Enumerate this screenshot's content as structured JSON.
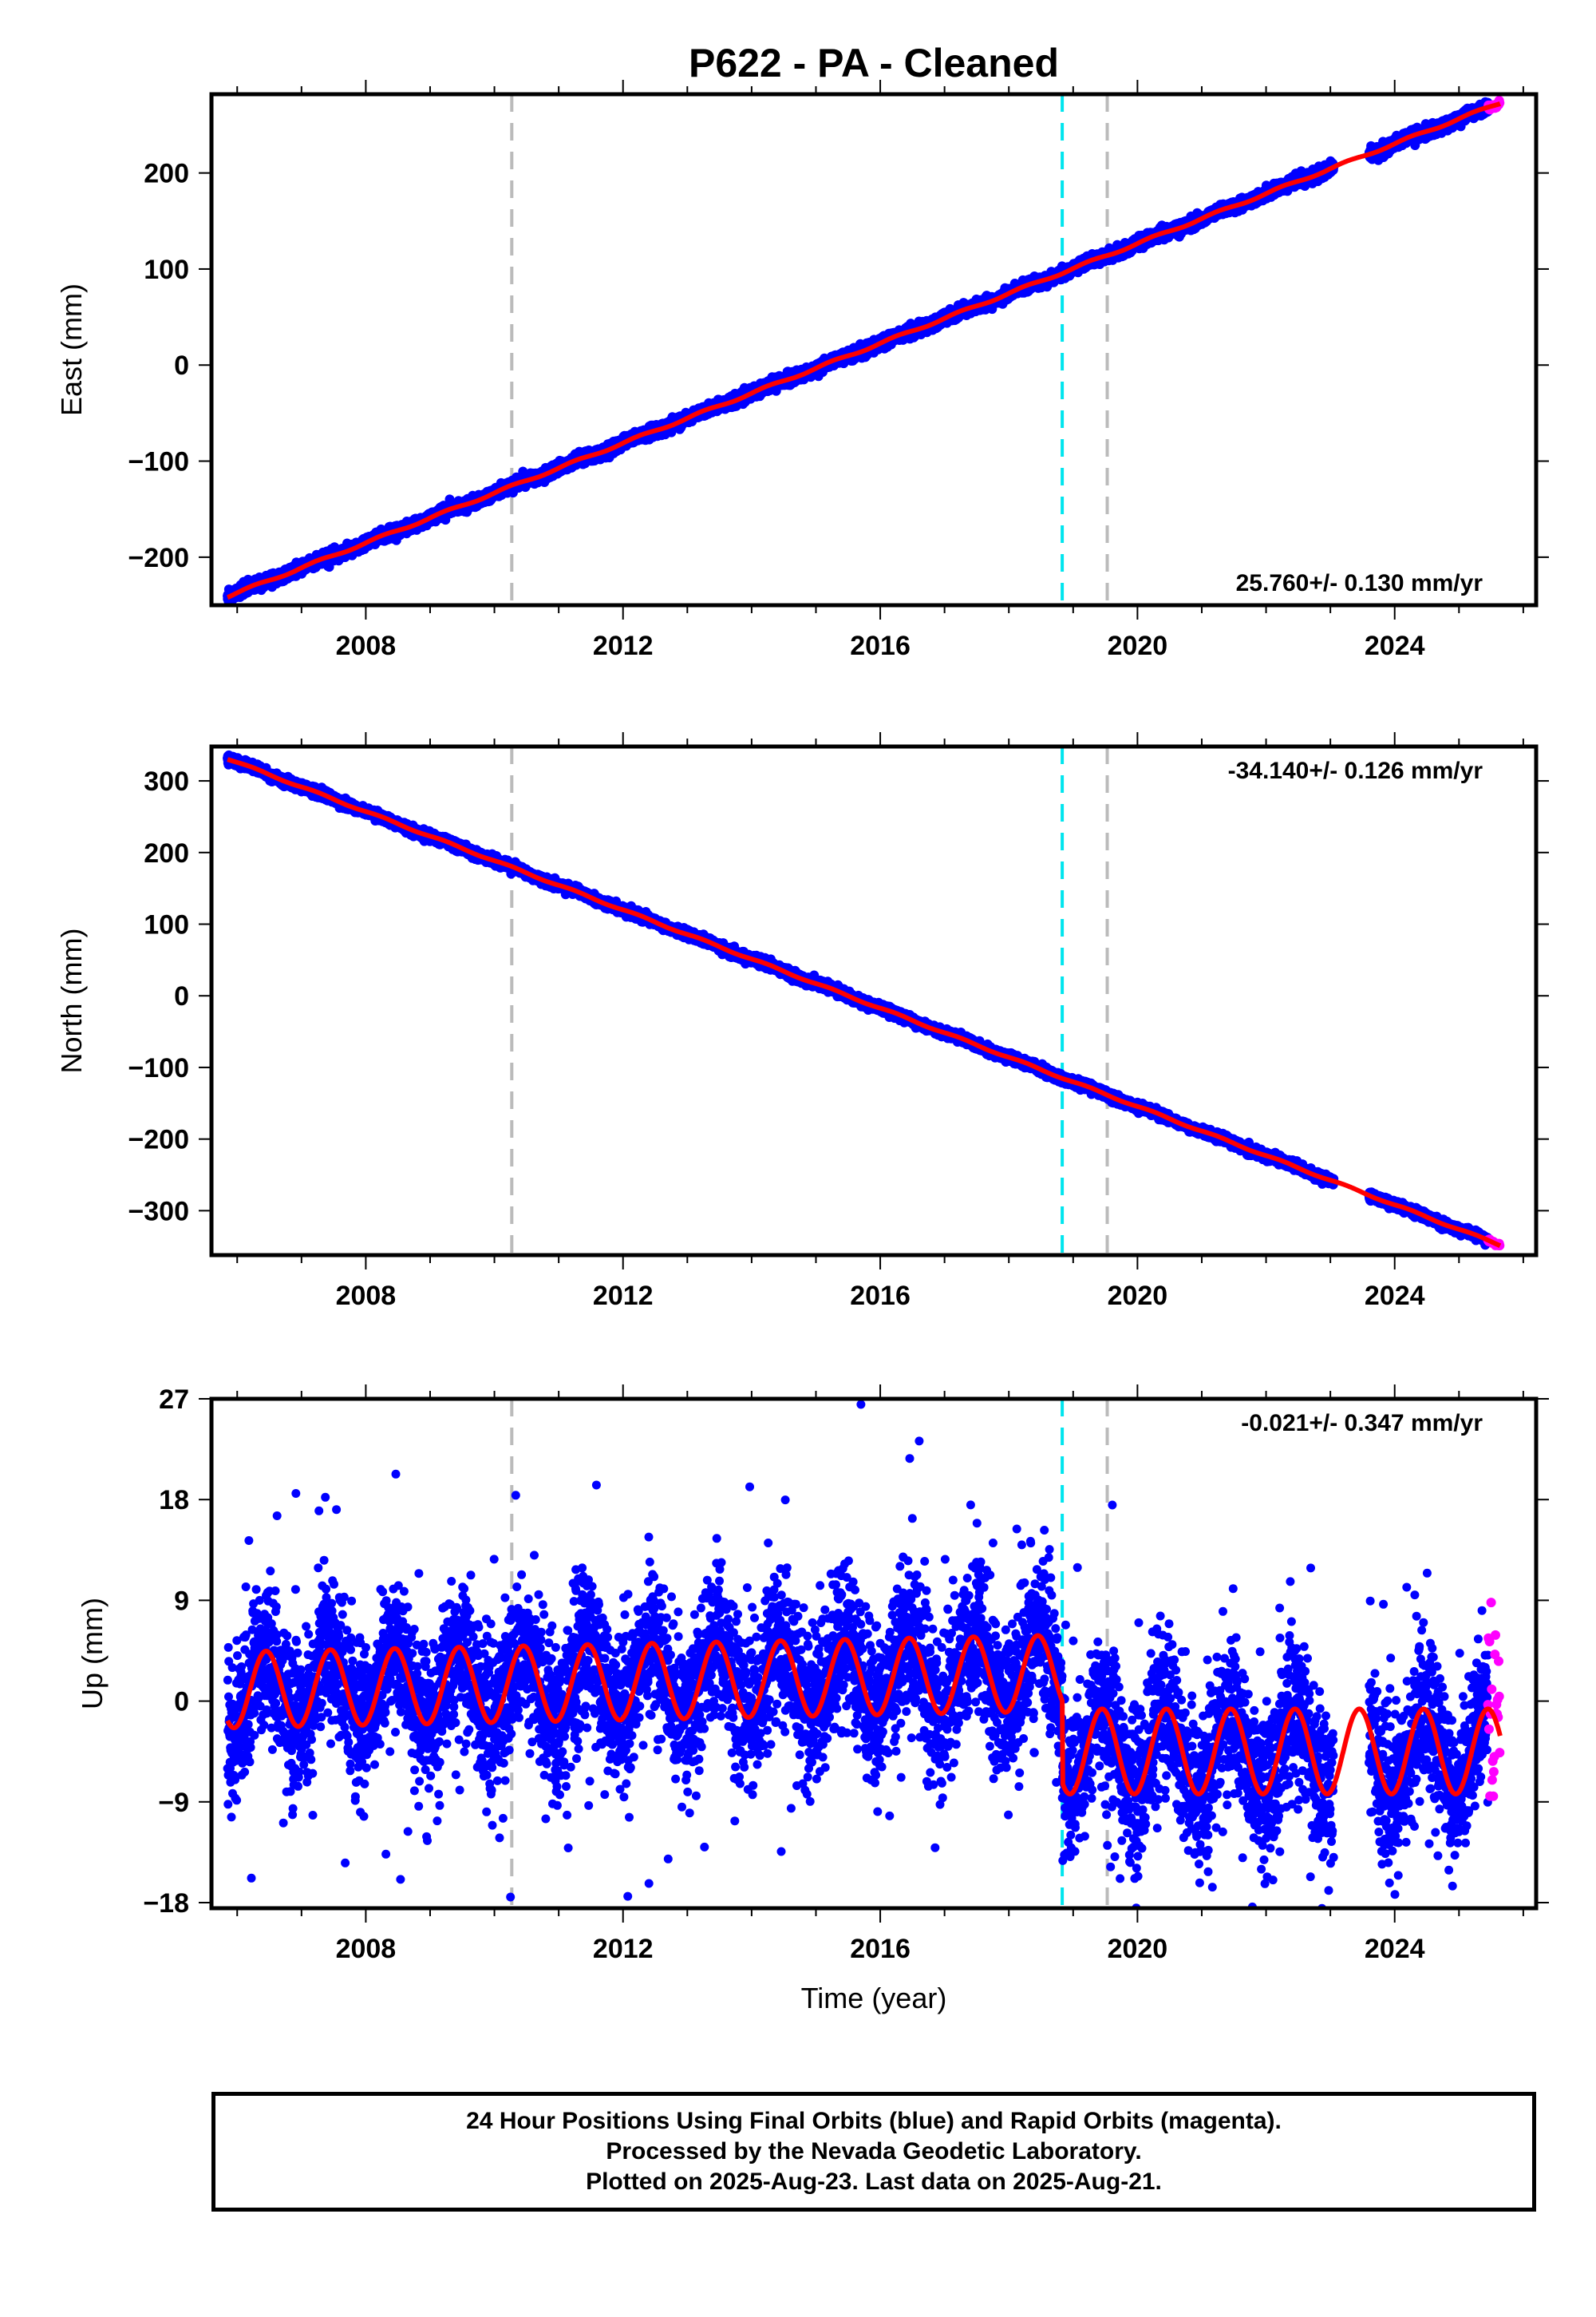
{
  "title": "P622  - PA - Cleaned",
  "xlabel": "Time (year)",
  "footer": {
    "line1": "24 Hour Positions Using Final Orbits (blue) and Rapid Orbits (magenta).",
    "line2": "Processed by the Nevada Geodetic Laboratory.",
    "line3": "Plotted on 2025-Aug-23. Last data on 2025-Aug-21."
  },
  "colors": {
    "final_orbits": "#0000ff",
    "rapid_orbits": "#ff00ff",
    "model_fit": "#ff0000",
    "antenna_change_line": "#bbbbbb",
    "earthquake_line": "#00e5ee"
  },
  "chart_data": [
    {
      "type": "scatter",
      "component": "east",
      "ylabel": "East (mm)",
      "rate_label": "25.760+/- 0.130 mm/yr",
      "rate_position": "bottom-right",
      "xlim": [
        2005.6,
        2026.2
      ],
      "ylim": [
        -250,
        282
      ],
      "x_ticks": [
        2008,
        2012,
        2016,
        2020,
        2024
      ],
      "y_ticks": [
        -200,
        -100,
        0,
        100,
        200
      ],
      "y_tick_labels": [
        "−200",
        "−100",
        "0",
        "100",
        "200"
      ],
      "grey_dashed_lines": [
        2010.27,
        2019.53
      ],
      "cyan_dashed_lines": [
        2018.83
      ],
      "series": {
        "start": 2005.85,
        "end_final": 2025.45,
        "end": 2025.64,
        "start_value": -241,
        "end_value": 273,
        "rate": 25.76,
        "scatter": 2.8,
        "annual_amplitude": 1.2,
        "gap": [
          2023.05,
          2023.6
        ]
      }
    },
    {
      "type": "scatter",
      "component": "north",
      "ylabel": "North (mm)",
      "rate_label": "-34.140+/- 0.126 mm/yr",
      "rate_position": "top-right",
      "xlim": [
        2005.6,
        2026.2
      ],
      "ylim": [
        -362,
        348
      ],
      "x_ticks": [
        2008,
        2012,
        2016,
        2020,
        2024
      ],
      "y_ticks": [
        -300,
        -200,
        -100,
        0,
        100,
        200,
        300
      ],
      "y_tick_labels": [
        "−300",
        "−200",
        "−100",
        "0",
        "100",
        "200",
        "300"
      ],
      "grey_dashed_lines": [
        2010.27,
        2019.53
      ],
      "cyan_dashed_lines": [
        2018.83
      ],
      "series": {
        "start": 2005.85,
        "end_final": 2025.45,
        "end": 2025.64,
        "start_value": 331,
        "end_value": -348,
        "rate": -34.14,
        "scatter": 2.8,
        "annual_amplitude": 1.2,
        "gap": [
          2023.05,
          2023.6
        ]
      }
    },
    {
      "type": "scatter",
      "component": "up",
      "ylabel": "Up (mm)",
      "rate_label": "-0.021+/- 0.347 mm/yr",
      "rate_position": "top-right",
      "xlim": [
        2005.6,
        2026.2
      ],
      "ylim": [
        -18.5,
        27
      ],
      "x_ticks": [
        2008,
        2012,
        2016,
        2020,
        2024
      ],
      "y_ticks": [
        -18,
        -9,
        0,
        9,
        18,
        27
      ],
      "y_tick_labels": [
        "−18",
        "−9",
        "0",
        "9",
        "18",
        "27"
      ],
      "grey_dashed_lines": [
        2010.27,
        2019.53
      ],
      "cyan_dashed_lines": [
        2018.83
      ],
      "series": {
        "start": 2005.85,
        "end_final": 2025.45,
        "end": 2025.64,
        "offset_before": 1.0,
        "offset_after": -4.5,
        "offset_step_year": 2018.83,
        "annual_amplitude_early": 3.4,
        "annual_amplitude_late": 3.8,
        "scatter": 3.2,
        "gap": [
          2023.05,
          2023.6
        ],
        "max_point": [
          2015.7,
          26.5
        ],
        "min_point": [
          2010.25,
          -17.5
        ]
      }
    }
  ]
}
